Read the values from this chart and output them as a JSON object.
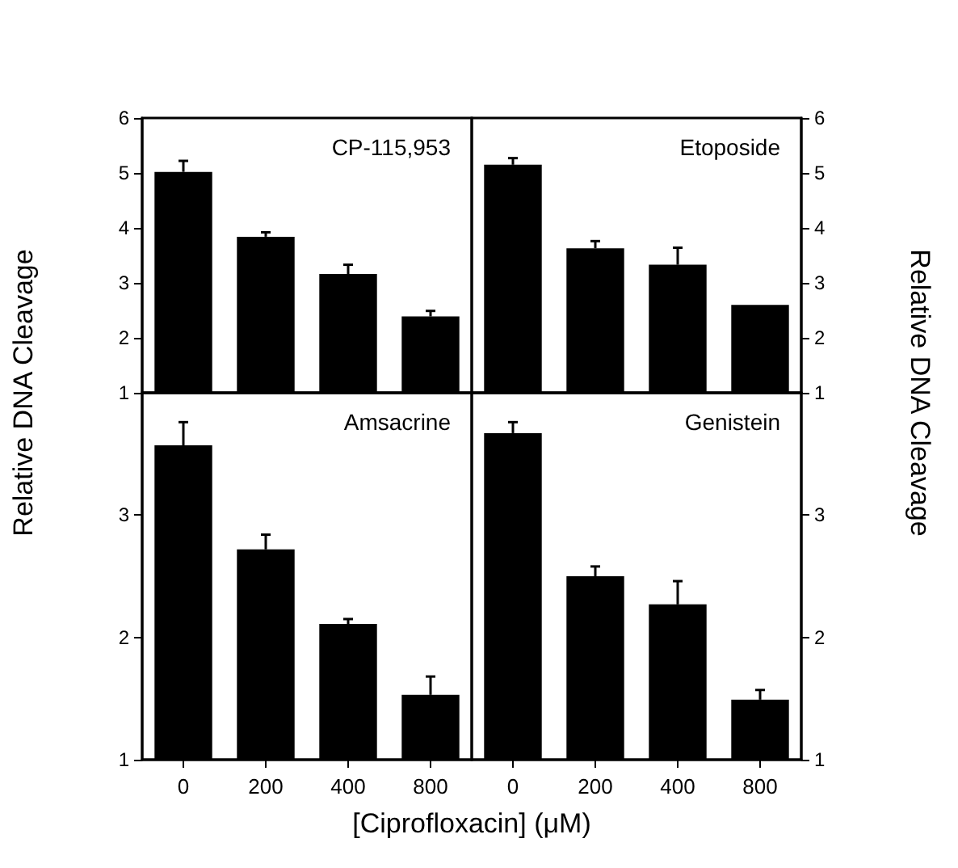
{
  "chart_data": [
    {
      "type": "bar",
      "title": "CP-115,953",
      "ylabel": "Relative DNA Cleavage",
      "categories": [
        "0",
        "200",
        "400",
        "800"
      ],
      "values": [
        5.02,
        3.84,
        3.16,
        2.39
      ],
      "errors": [
        [
          5.02,
          5.22
        ],
        [
          3.84,
          3.92
        ],
        [
          3.16,
          3.33
        ],
        [
          2.39,
          2.49
        ]
      ],
      "color": "#000000",
      "ylim": [
        1,
        6
      ],
      "yticks": [
        1,
        2,
        3,
        4,
        5,
        6
      ],
      "tick_labels": "y"
    },
    {
      "type": "bar",
      "title": "Etoposide",
      "ylabel": "Relative DNA Cleavage",
      "categories": [
        "0",
        "200",
        "400",
        "800"
      ],
      "values": [
        5.15,
        3.63,
        3.33,
        2.6
      ],
      "errors": [
        [
          5.15,
          5.27
        ],
        [
          3.63,
          3.76
        ],
        [
          3.33,
          3.64
        ],
        null
      ],
      "color": "#000000",
      "ylim": [
        1,
        6
      ],
      "yticks": [
        1,
        2,
        3,
        4,
        5,
        6
      ],
      "tick_labels": "y"
    },
    {
      "type": "bar",
      "title": "Amsacrine",
      "xlabel": "[Ciprofloxacin]  (μM)",
      "categories": [
        "0",
        "200",
        "400",
        "800"
      ],
      "values": [
        3.57,
        2.72,
        2.11,
        1.53
      ],
      "errors": [
        [
          3.57,
          3.76
        ],
        [
          2.72,
          2.84
        ],
        [
          2.11,
          2.15
        ],
        [
          1.53,
          1.68
        ]
      ],
      "color": "#000000",
      "ylim": [
        1,
        4
      ],
      "yticks": [
        1,
        2,
        3
      ]
    },
    {
      "type": "bar",
      "title": "Genistein",
      "categories": [
        "0",
        "200",
        "400",
        "800"
      ],
      "values": [
        3.67,
        2.5,
        2.27,
        1.49
      ],
      "errors": [
        [
          3.67,
          3.76
        ],
        [
          2.5,
          2.58
        ],
        [
          2.27,
          2.46
        ],
        [
          1.49,
          1.57
        ]
      ],
      "color": "#000000",
      "ylim": [
        1,
        4
      ],
      "yticks": [
        1,
        2,
        3
      ]
    }
  ]
}
